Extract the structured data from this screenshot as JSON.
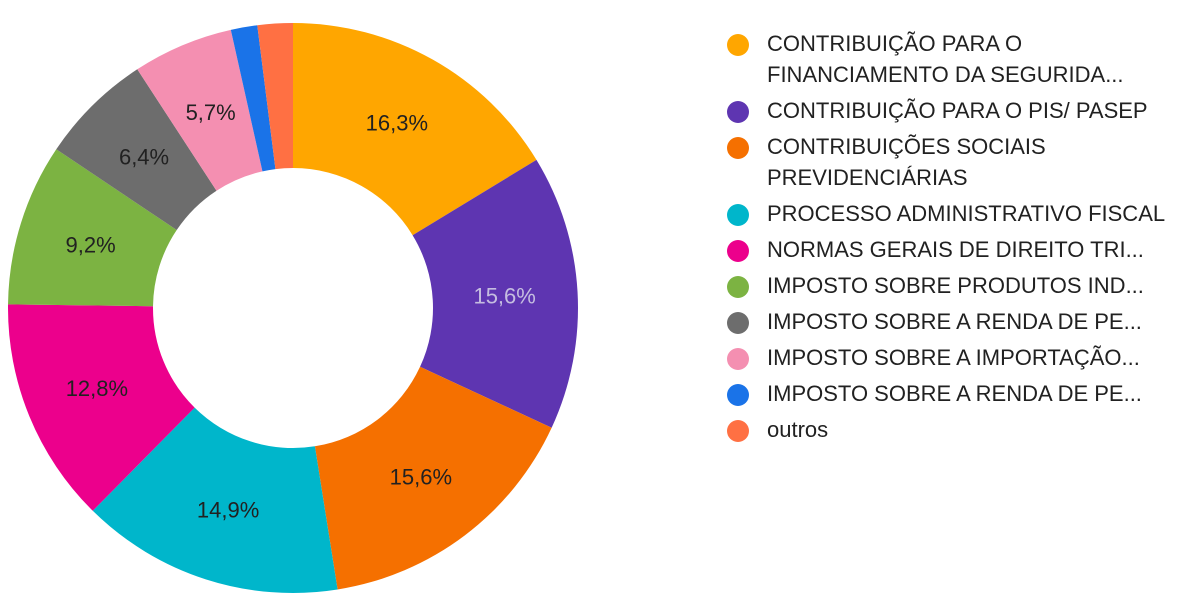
{
  "chart_data": {
    "type": "pie",
    "donut": true,
    "legend_position": "right",
    "slices": [
      {
        "label": "CONTRIBUIÇÃO PARA O FINANCIAMENTO DA SEGURIDA...",
        "value": 16.3,
        "display": "16,3%",
        "color": "#ffa600",
        "label_color": "#212121"
      },
      {
        "label": "CONTRIBUIÇÃO PARA O PIS/ PASEP",
        "value": 15.6,
        "display": "15,6%",
        "color": "#5e35b1",
        "label_color": "#c5bde0"
      },
      {
        "label": "CONTRIBUIÇÕES SOCIAIS PREVIDENCIÁRIAS",
        "value": 15.6,
        "display": "15,6%",
        "color": "#f57000",
        "label_color": "#212121"
      },
      {
        "label": "PROCESSO ADMINISTRATIVO FISCAL",
        "value": 14.9,
        "display": "14,9%",
        "color": "#00b6cb",
        "label_color": "#212121"
      },
      {
        "label": "NORMAS GERAIS DE DIREITO TRI...",
        "value": 12.8,
        "display": "12,8%",
        "color": "#ec008c",
        "label_color": "#212121"
      },
      {
        "label": "IMPOSTO SOBRE PRODUTOS IND...",
        "value": 9.2,
        "display": "9,2%",
        "color": "#7cb342",
        "label_color": "#212121"
      },
      {
        "label": "IMPOSTO SOBRE A RENDA DE PE...",
        "value": 6.4,
        "display": "6,4%",
        "color": "#6d6d6d",
        "label_color": "#212121"
      },
      {
        "label": "IMPOSTO SOBRE A IMPORTAÇÃO...",
        "value": 5.7,
        "display": "5,7%",
        "color": "#f48fb1",
        "label_color": "#212121"
      },
      {
        "label": "IMPOSTO SOBRE A RENDA DE PE...",
        "value": 1.5,
        "display": "",
        "color": "#1a73e8",
        "label_color": "#212121"
      },
      {
        "label": "outros",
        "value": 2.0,
        "display": "",
        "color": "#ff7043",
        "label_color": "#212121"
      }
    ]
  },
  "legend": {
    "items": [
      {
        "text": "CONTRIBUIÇÃO PARA O FINANCIAMENTO DA SEGURIDA...",
        "color": "#ffa600"
      },
      {
        "text": "CONTRIBUIÇÃO PARA O PIS/ PASEP",
        "color": "#5e35b1"
      },
      {
        "text": "CONTRIBUIÇÕES SOCIAIS PREVIDENCIÁRIAS",
        "color": "#f57000"
      },
      {
        "text": "PROCESSO ADMINISTRATIVO FISCAL",
        "color": "#00b6cb"
      },
      {
        "text": "NORMAS GERAIS DE DIREITO TRI...",
        "color": "#ec008c"
      },
      {
        "text": "IMPOSTO SOBRE PRODUTOS IND...",
        "color": "#7cb342"
      },
      {
        "text": "IMPOSTO SOBRE A RENDA DE PE...",
        "color": "#6d6d6d"
      },
      {
        "text": "IMPOSTO SOBRE A IMPORTAÇÃO...",
        "color": "#f48fb1"
      },
      {
        "text": "IMPOSTO SOBRE A RENDA DE PE...",
        "color": "#1a73e8"
      },
      {
        "text": "outros",
        "color": "#ff7043"
      }
    ]
  }
}
